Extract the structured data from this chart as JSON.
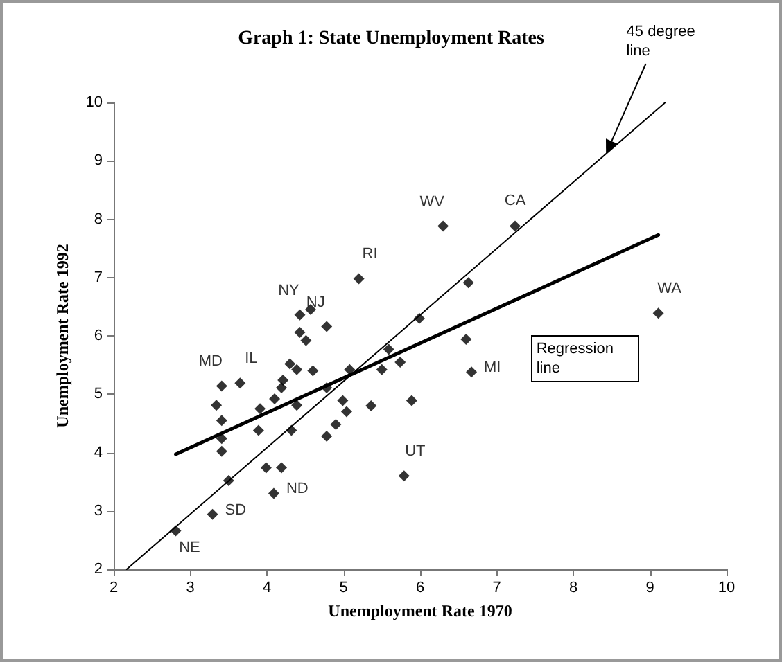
{
  "chart_data": {
    "type": "scatter",
    "title": "Graph 1: State Unemployment Rates",
    "xlabel": "Unemployment Rate 1970",
    "ylabel": "Unemployment Rate 1992",
    "xlim": [
      2,
      10
    ],
    "xticks": [
      2,
      3,
      4,
      5,
      6,
      7,
      8,
      9,
      10
    ],
    "ylim": [
      2,
      10
    ],
    "yticks": [
      2,
      3,
      4,
      5,
      6,
      7,
      8,
      9,
      10
    ],
    "series": [
      {
        "color": "#000000",
        "marker": "diamond",
        "x": [
          2.81,
          3.29,
          3.5,
          4.09,
          3.99,
          4.19,
          3.41,
          3.41,
          3.41,
          3.34,
          3.41,
          3.65,
          3.89,
          3.91,
          4.1,
          4.19,
          4.21,
          4.39,
          4.32,
          4.3,
          4.39,
          4.6,
          4.43,
          4.51,
          4.43,
          4.57,
          4.78,
          4.78,
          4.78,
          4.9,
          4.99,
          5.04,
          5.08,
          5.2,
          5.36,
          5.5,
          5.59,
          5.74,
          5.89,
          5.79,
          5.99,
          6.3,
          7.24,
          6.63,
          6.6,
          6.67,
          9.11
        ],
        "values": [
          2.66,
          2.94,
          3.52,
          3.3,
          3.74,
          3.74,
          4.02,
          4.24,
          4.55,
          4.81,
          5.14,
          5.19,
          4.38,
          4.75,
          4.92,
          5.11,
          5.24,
          4.81,
          4.38,
          5.52,
          5.42,
          5.4,
          6.06,
          5.92,
          6.36,
          6.45,
          6.16,
          5.11,
          4.28,
          4.48,
          4.89,
          4.7,
          5.42,
          6.98,
          4.8,
          5.42,
          5.77,
          5.55,
          4.89,
          3.6,
          6.3,
          7.88,
          7.88,
          6.91,
          5.94,
          5.38,
          6.39
        ],
        "value_labels": [
          "NE",
          "SD",
          null,
          "ND",
          null,
          null,
          null,
          null,
          null,
          null,
          "MD",
          "IL",
          null,
          null,
          null,
          null,
          null,
          null,
          null,
          null,
          null,
          null,
          null,
          null,
          "NY",
          null,
          "NJ",
          null,
          null,
          null,
          null,
          null,
          null,
          "RI",
          null,
          null,
          null,
          null,
          null,
          "UT",
          null,
          "WV",
          "CA",
          null,
          null,
          "MI",
          "WA"
        ]
      },
      {
        "type": "line",
        "name": "45 degree line",
        "color": "#000000",
        "marker": "none",
        "x": [
          2.17,
          9.2
        ],
        "values": [
          2,
          10
        ]
      },
      {
        "type": "line",
        "name": "Regression line",
        "color": "#000000",
        "marker": "none",
        "x": [
          2.81,
          9.11
        ],
        "values": [
          3.97,
          7.73
        ]
      }
    ]
  }
}
